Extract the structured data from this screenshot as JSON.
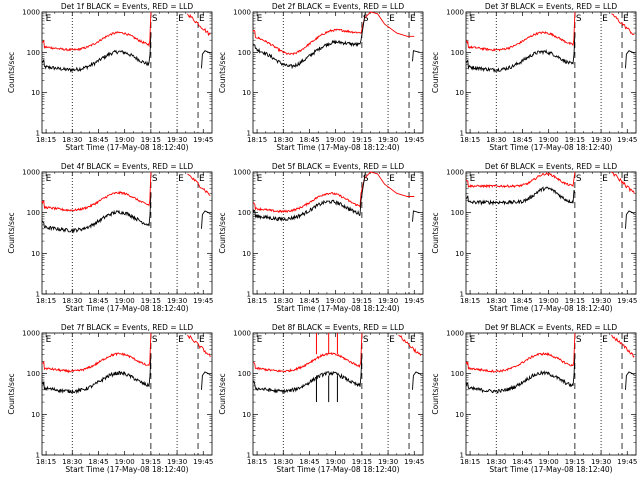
{
  "figure": {
    "background": "#ffffff",
    "black_color": "#000000",
    "red_color": "#ff0000",
    "time_ticks": [
      "18:15",
      "18:30",
      "18:45",
      "19:00",
      "19:15",
      "19:30",
      "19:45"
    ],
    "marker_labels": [
      "E",
      "S",
      "E",
      "E"
    ]
  },
  "chart_data": [
    {
      "type": "line",
      "title": "Det 1f BLACK = Events, RED = LLD",
      "ylabel": "Counts/sec",
      "xlabel": "Start Time (17-May-08 18:12:40)",
      "yscale": "log",
      "ylim": [
        1,
        1000
      ],
      "yticks": [
        "1",
        "10",
        "100",
        "1000"
      ],
      "xlim": [
        "18:12:40",
        "19:50"
      ],
      "variant": "typical",
      "series": [
        {
          "name": "Events",
          "color": "#000000",
          "spike": false
        },
        {
          "name": "LLD",
          "color": "#ff0000",
          "spike": false
        }
      ]
    },
    {
      "type": "line",
      "title": "Det 2f BLACK = Events, RED = LLD",
      "ylabel": "Counts/sec",
      "xlabel": "Start Time (17-May-08 18:12:40)",
      "yscale": "log",
      "ylim": [
        1,
        1000
      ],
      "yticks": [
        "1",
        "10",
        "100",
        "1000"
      ],
      "xlim": [
        "18:12:40",
        "19:50"
      ],
      "variant": "det2",
      "series": [
        {
          "name": "Events",
          "color": "#000000"
        },
        {
          "name": "LLD",
          "color": "#ff0000"
        }
      ]
    },
    {
      "type": "line",
      "title": "Det 3f BLACK = Events, RED = LLD",
      "ylabel": "Counts/sec",
      "xlabel": "Start Time (17-May-08 18:12:40)",
      "yscale": "log",
      "ylim": [
        1,
        1000
      ],
      "yticks": [
        "1",
        "10",
        "100",
        "1000"
      ],
      "xlim": [
        "18:12:40",
        "19:50"
      ],
      "variant": "typical",
      "series": [
        {
          "name": "Events",
          "color": "#000000"
        },
        {
          "name": "LLD",
          "color": "#ff0000"
        }
      ]
    },
    {
      "type": "line",
      "title": "Det 4f BLACK = Events, RED = LLD",
      "ylabel": "Counts/sec",
      "xlabel": "Start Time (17-May-08 18:12:40)",
      "yscale": "log",
      "ylim": [
        1,
        1000
      ],
      "yticks": [
        "1",
        "10",
        "100",
        "1000"
      ],
      "xlim": [
        "18:12:40",
        "19:50"
      ],
      "variant": "typical",
      "series": [
        {
          "name": "Events",
          "color": "#000000"
        },
        {
          "name": "LLD",
          "color": "#ff0000"
        }
      ]
    },
    {
      "type": "line",
      "title": "Det 5f BLACK = Events, RED = LLD",
      "ylabel": "Counts/sec",
      "xlabel": "Start Time (17-May-08 18:12:40)",
      "yscale": "log",
      "ylim": [
        1,
        1000
      ],
      "yticks": [
        "1",
        "10",
        "100",
        "1000"
      ],
      "xlim": [
        "18:12:40",
        "19:50"
      ],
      "variant": "det5",
      "series": [
        {
          "name": "Events",
          "color": "#000000"
        },
        {
          "name": "LLD",
          "color": "#ff0000"
        }
      ]
    },
    {
      "type": "line",
      "title": "Det 6f BLACK = Events, RED = LLD",
      "ylabel": "Counts/sec",
      "xlabel": "Start Time (17-May-08 18:12:40)",
      "yscale": "log",
      "ylim": [
        1,
        1000
      ],
      "yticks": [
        "1",
        "10",
        "100",
        "1000"
      ],
      "xlim": [
        "18:12:40",
        "19:50"
      ],
      "variant": "det6",
      "series": [
        {
          "name": "Events",
          "color": "#000000"
        },
        {
          "name": "LLD",
          "color": "#ff0000"
        }
      ]
    },
    {
      "type": "line",
      "title": "Det 7f BLACK = Events, RED = LLD",
      "ylabel": "Counts/sec",
      "xlabel": "Start Time (17-May-08 18:12:40)",
      "yscale": "log",
      "ylim": [
        1,
        1000
      ],
      "yticks": [
        "1",
        "10",
        "100",
        "1000"
      ],
      "xlim": [
        "18:12:40",
        "19:50"
      ],
      "variant": "typical",
      "series": [
        {
          "name": "Events",
          "color": "#000000"
        },
        {
          "name": "LLD",
          "color": "#ff0000"
        }
      ]
    },
    {
      "type": "line",
      "title": "Det 8f BLACK = Events, RED = LLD",
      "ylabel": "Counts/sec",
      "xlabel": "Start Time (17-May-08 18:12:40)",
      "yscale": "log",
      "ylim": [
        1,
        1000
      ],
      "yticks": [
        "1",
        "10",
        "100",
        "1000"
      ],
      "xlim": [
        "18:12:40",
        "19:50"
      ],
      "variant": "det8",
      "series": [
        {
          "name": "Events",
          "color": "#000000"
        },
        {
          "name": "LLD",
          "color": "#ff0000"
        }
      ]
    },
    {
      "type": "line",
      "title": "Det 9f BLACK = Events, RED = LLD",
      "ylabel": "Counts/sec",
      "xlabel": "Start Time (17-May-08 18:12:40)",
      "yscale": "log",
      "ylim": [
        1,
        1000
      ],
      "yticks": [
        "1",
        "10",
        "100",
        "1000"
      ],
      "xlim": [
        "18:12:40",
        "19:50"
      ],
      "variant": "typical",
      "series": [
        {
          "name": "Events",
          "color": "#000000"
        },
        {
          "name": "LLD",
          "color": "#ff0000"
        }
      ]
    }
  ]
}
